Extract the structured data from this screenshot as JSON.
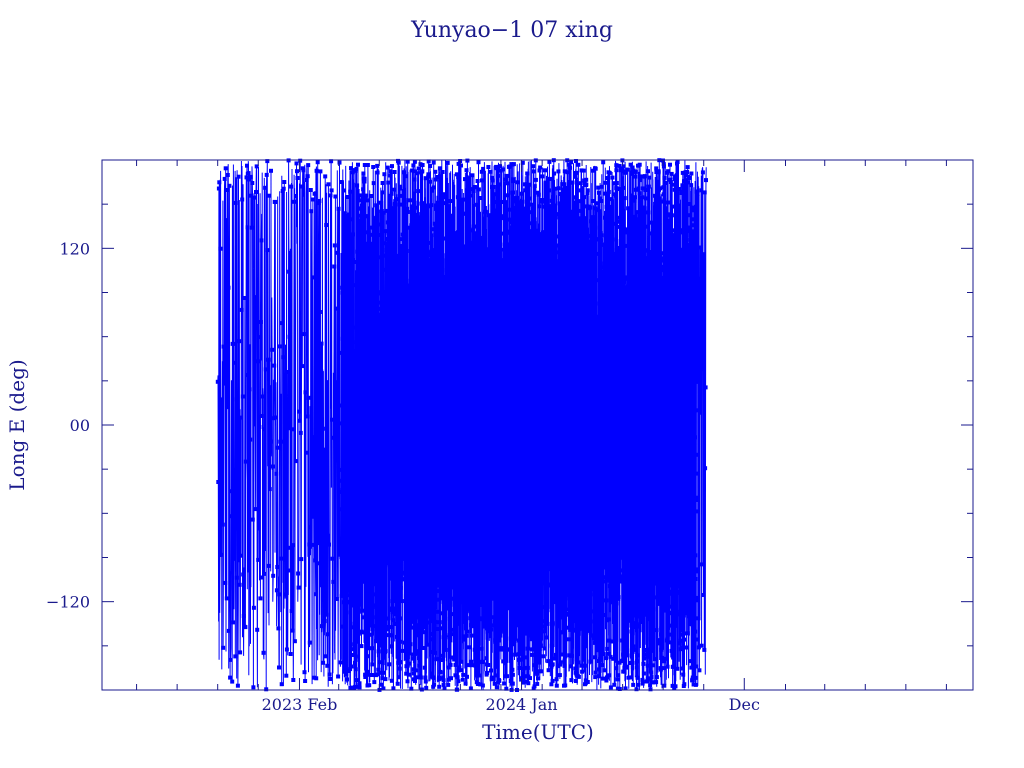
{
  "chart_data": {
    "type": "line",
    "title": "Yunyao−1 07 xing",
    "xlabel": "Time(UTC)",
    "ylabel": "Long E (deg)",
    "x_axis_type": "date",
    "xlim": [
      "2022-04-10",
      "2025-11-10"
    ],
    "ylim": [
      -180,
      180
    ],
    "y_ticks": [
      {
        "value": -120,
        "label": "−120"
      },
      {
        "value": 0,
        "label": "00"
      },
      {
        "value": 120,
        "label": "120"
      }
    ],
    "x_ticks": [
      {
        "value": "2023-02-01",
        "label": "2023 Feb"
      },
      {
        "value": "2024-01-01",
        "label": "2024 Jan"
      },
      {
        "value": "2024-12-01",
        "label": "Dec"
      }
    ],
    "grid": false,
    "series": [
      {
        "marker": "square",
        "color": "#0000ff",
        "data_start": "2022-10-01",
        "data_end": "2024-10-05",
        "segments": [
          {
            "start": "2022-10-01",
            "end": "2023-04-05",
            "density": "sparse",
            "points_per_day": 2.5
          },
          {
            "start": "2023-04-05",
            "end": "2023-05-25",
            "density": "medium",
            "points_per_day": 14
          },
          {
            "start": "2023-05-25",
            "end": "2024-09-20",
            "density": "dense",
            "points_per_day": 16
          },
          {
            "start": "2024-09-20",
            "end": "2024-10-05",
            "density": "sparse",
            "points_per_day": 3
          }
        ]
      }
    ],
    "colors": {
      "axis": "#1a1a8c",
      "data": "#0000ff",
      "background": "#ffffff"
    }
  }
}
